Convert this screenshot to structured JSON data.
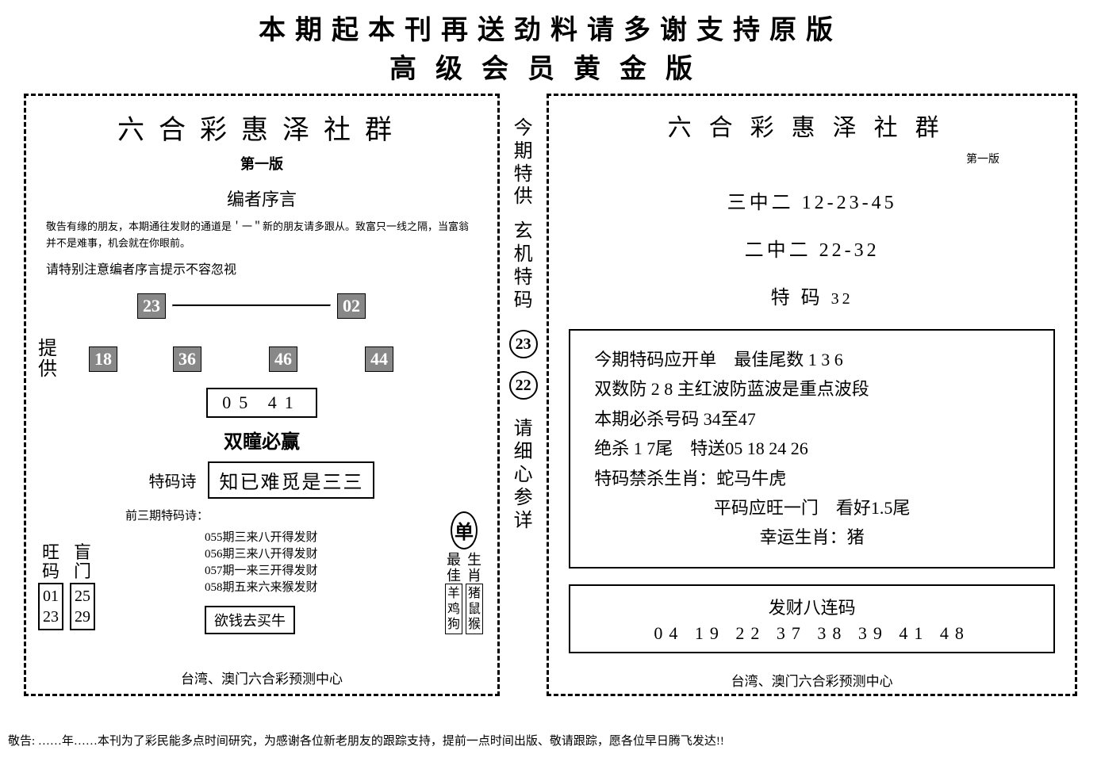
{
  "header": {
    "line1": "本期起本刊再送劲料请多谢支持原版",
    "line2": "高级会员黄金版"
  },
  "left_panel": {
    "title": "六合彩惠泽社群",
    "version": "第一版",
    "preface_title": "编者序言",
    "preface_text": "敬告有缘的朋友，本期通往发财的通道是＇一＂新的朋友请多跟从。致富只一线之隔，当富翁并不是难事，机会就在你眼前。",
    "preface_note": "请特别注意编者序言提示不容忽视",
    "row1": {
      "nums": [
        "23",
        "02"
      ]
    },
    "provide_label": "提供",
    "row2": {
      "nums": [
        "18",
        "36",
        "46",
        "44"
      ]
    },
    "plain_nums": "05 41",
    "motto": "双瞳必赢",
    "poem_label": "特码诗",
    "poem_text": "知已难觅是三三",
    "prev_poems_label": "前三期特码诗：",
    "prev_poems": [
      "055期三来八开得发财",
      "056期三来八开得发财",
      "057期一来三开得发财",
      "058期五来六来猴发财"
    ],
    "money_text": "欲钱去买牛",
    "wang_label": "旺码",
    "wang_nums": [
      "01",
      "23"
    ],
    "blind_label": "盲门",
    "blind_nums": [
      "25",
      "29"
    ],
    "single_char": "单",
    "best_label": "最佳",
    "zodiac_label": "生肖",
    "zodiac_box1": [
      "羊",
      "鸡",
      "狗"
    ],
    "zodiac_box2": [
      "猪",
      "鼠",
      "猴"
    ],
    "footer": "台湾、澳门六合彩预测中心"
  },
  "strip": {
    "text1": "今期特供",
    "text2": "玄机特码",
    "circle1": "23",
    "circle2": "22",
    "text3": "请细心参详"
  },
  "right_panel": {
    "title": "六合彩惠泽社群",
    "version": "第一版",
    "line1_label": "三中二",
    "line1_nums": "12-23-45",
    "line2_label": "二中二",
    "line2_nums": "22-32",
    "line3_label": "特 码",
    "line3_nums": "32",
    "box_lines": [
      "今期特码应开单　最佳尾数 1 3 6",
      "双数防 2 8 主红波防蓝波是重点波段",
      "本期必杀号码 34至47",
      "绝杀 1 7尾　特送05 18 24 26",
      "特码禁杀生肖：蛇马牛虎",
      "平码应旺一门　看好1.5尾",
      "幸运生肖：猪"
    ],
    "fortune_title": "发财八连码",
    "fortune_nums": "04 19 22 37 38 39 41 48",
    "footer": "台湾、澳门六合彩预测中心"
  },
  "bottom_text": "敬告: ……年……本刊为了彩民能多点时间研究，为感谢各位新老朋友的跟踪支持，提前一点时间出版、敬请跟踪，愿各位早日腾飞发达!!"
}
